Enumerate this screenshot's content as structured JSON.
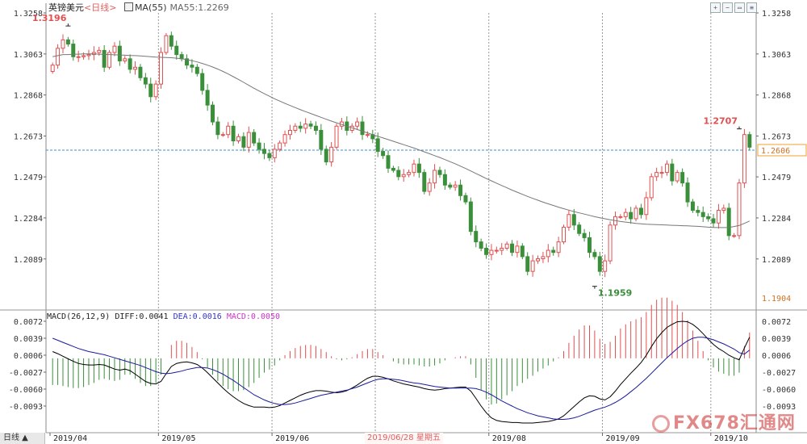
{
  "header": {
    "symbol": "英镑美元",
    "period": "<日线>",
    "ma_label": "MA(55)",
    "ma_value": "MA55:1.2269"
  },
  "macd_header": {
    "params": "MACD(26,12,9)",
    "diff": "DIFF:0.0041",
    "dea": "DEA:0.0016",
    "macd": "MACD:0.0050"
  },
  "bottom": {
    "tab_label": "日线",
    "cursor_date": "2019/06/28 星期五"
  },
  "watermark": {
    "text": "FX678汇通网"
  },
  "colors": {
    "up": "#e05050",
    "down": "#3a8f3a",
    "ma": "#777777",
    "diff": "#000000",
    "dea": "#1a1aa0",
    "grid": "#999999",
    "current_price": "#3a8fd6"
  },
  "chart_data": {
    "type": "candlestick",
    "price_axis": {
      "ticks": [
        "1.3258",
        "1.3063",
        "1.2868",
        "1.2673",
        "1.2479",
        "1.2284",
        "1.2089"
      ],
      "min": 1.1904,
      "min_label": "1.1904",
      "max": 1.3258
    },
    "current_price": 1.2606,
    "current_price_label": "1.2606",
    "macd_axis": {
      "ticks": [
        "0.0072",
        "0.0039",
        "0.0006",
        "-0.0027",
        "-0.0060",
        "-0.0093"
      ],
      "min": -0.0126,
      "max": 0.0072
    },
    "month_labels": [
      "2019/04",
      "2019/05",
      "2019/06",
      "2019/07",
      "2019/08",
      "2019/09",
      "2019/10"
    ],
    "month_start_index": [
      0,
      21,
      43,
      63,
      85,
      107,
      128
    ],
    "annotations": [
      {
        "label": "1.3196",
        "index": 3,
        "value": 1.3196,
        "kind": "high"
      },
      {
        "label": "1.1959",
        "index": 105,
        "value": 1.1959,
        "kind": "low"
      },
      {
        "label": "1.2707",
        "index": 133,
        "value": 1.2707,
        "kind": "high"
      }
    ],
    "close": [
      1.301,
      1.309,
      1.313,
      1.311,
      1.305,
      1.305,
      1.3055,
      1.306,
      1.307,
      1.308,
      1.3,
      1.307,
      1.31,
      1.303,
      1.304,
      1.299,
      1.3,
      1.295,
      1.292,
      1.286,
      1.292,
      1.307,
      1.315,
      1.31,
      1.306,
      1.304,
      1.301,
      1.3,
      1.297,
      1.289,
      1.282,
      1.274,
      1.268,
      1.268,
      1.272,
      1.265,
      1.267,
      1.262,
      1.269,
      1.264,
      1.261,
      1.259,
      1.257,
      1.261,
      1.264,
      1.268,
      1.27,
      1.272,
      1.271,
      1.273,
      1.272,
      1.27,
      1.261,
      1.255,
      1.262,
      1.272,
      1.274,
      1.27,
      1.272,
      1.274,
      1.268,
      1.268,
      1.266,
      1.26,
      1.258,
      1.252,
      1.251,
      1.248,
      1.249,
      1.25,
      1.254,
      1.25,
      1.241,
      1.245,
      1.251,
      1.249,
      1.244,
      1.243,
      1.244,
      1.239,
      1.236,
      1.222,
      1.217,
      1.214,
      1.211,
      1.213,
      1.213,
      1.214,
      1.216,
      1.212,
      1.215,
      1.21,
      1.203,
      1.208,
      1.209,
      1.21,
      1.213,
      1.212,
      1.217,
      1.224,
      1.23,
      1.225,
      1.221,
      1.219,
      1.212,
      1.21,
      1.203,
      1.208,
      1.225,
      1.229,
      1.229,
      1.231,
      1.228,
      1.233,
      1.23,
      1.238,
      1.248,
      1.25,
      1.25,
      1.254,
      1.246,
      1.25,
      1.245,
      1.236,
      1.232,
      1.231,
      1.229,
      1.228,
      1.226,
      1.232,
      1.233,
      1.22,
      1.22,
      1.245,
      1.268,
      1.262
    ],
    "ma55": [
      1.305,
      1.3055,
      1.306,
      1.306,
      1.3062,
      1.3062,
      1.3063,
      1.3063,
      1.3063,
      1.3062,
      1.3061,
      1.306,
      1.3059,
      1.3058,
      1.3057,
      1.3056,
      1.3055,
      1.3054,
      1.3052,
      1.305,
      1.3048,
      1.3047,
      1.3046,
      1.3045,
      1.3043,
      1.304,
      1.3036,
      1.3031,
      1.3025,
      1.3018,
      1.301,
      1.3001,
      1.2991,
      1.298,
      1.2968,
      1.2955,
      1.2942,
      1.2928,
      1.2914,
      1.29,
      1.2887,
      1.2874,
      1.2862,
      1.285,
      1.2839,
      1.2828,
      1.2818,
      1.2808,
      1.2798,
      1.2789,
      1.278,
      1.2771,
      1.2762,
      1.2753,
      1.2744,
      1.2736,
      1.2728,
      1.272,
      1.2712,
      1.2704,
      1.2696,
      1.2688,
      1.268,
      1.2672,
      1.2664,
      1.2656,
      1.2648,
      1.264,
      1.2632,
      1.2624,
      1.2616,
      1.2607,
      1.2598,
      1.2589,
      1.258,
      1.2571,
      1.2561,
      1.2551,
      1.2541,
      1.253,
      1.2519,
      1.2507,
      1.2495,
      1.2483,
      1.2471,
      1.246,
      1.2449,
      1.2438,
      1.2427,
      1.2416,
      1.2406,
      1.2396,
      1.2386,
      1.2377,
      1.2368,
      1.2359,
      1.2351,
      1.2343,
      1.2335,
      1.2328,
      1.2321,
      1.2314,
      1.2308,
      1.2302,
      1.2296,
      1.229,
      1.2285,
      1.228,
      1.2275,
      1.2271,
      1.2267,
      1.2264,
      1.2261,
      1.2258,
      1.2256,
      1.2254,
      1.2253,
      1.2252,
      1.2251,
      1.225,
      1.2249,
      1.2248,
      1.2247,
      1.2246,
      1.2245,
      1.2244,
      1.2242,
      1.224,
      1.2239,
      1.2238,
      1.2238,
      1.2239,
      1.2243,
      1.2248,
      1.2258,
      1.2269
    ],
    "diff": [
      0.0013,
      0.0009,
      0.0004,
      -0.0001,
      -0.0006,
      -0.001,
      -0.0012,
      -0.0013,
      -0.0013,
      -0.0012,
      -0.0013,
      -0.0017,
      -0.0021,
      -0.0023,
      -0.0021,
      -0.0024,
      -0.0031,
      -0.0038,
      -0.0045,
      -0.0049,
      -0.005,
      -0.0045,
      -0.003,
      -0.0016,
      -0.001,
      -0.0008,
      -0.0007,
      -0.0009,
      -0.0012,
      -0.0019,
      -0.0028,
      -0.0038,
      -0.0048,
      -0.0058,
      -0.0067,
      -0.0075,
      -0.0082,
      -0.0088,
      -0.0092,
      -0.0095,
      -0.0095,
      -0.0095,
      -0.0096,
      -0.0095,
      -0.0092,
      -0.0087,
      -0.0082,
      -0.0077,
      -0.0072,
      -0.0068,
      -0.0065,
      -0.0063,
      -0.0063,
      -0.0064,
      -0.0066,
      -0.0067,
      -0.0066,
      -0.0063,
      -0.0058,
      -0.0052,
      -0.0045,
      -0.0039,
      -0.0035,
      -0.0035,
      -0.0037,
      -0.004,
      -0.0044,
      -0.0047,
      -0.005,
      -0.0052,
      -0.0054,
      -0.0056,
      -0.0059,
      -0.0061,
      -0.0062,
      -0.0061,
      -0.0059,
      -0.0058,
      -0.0057,
      -0.0056,
      -0.0056,
      -0.0064,
      -0.0078,
      -0.0093,
      -0.0106,
      -0.0116,
      -0.0121,
      -0.0123,
      -0.0124,
      -0.0125,
      -0.0125,
      -0.0126,
      -0.0126,
      -0.0126,
      -0.0125,
      -0.0124,
      -0.0123,
      -0.0121,
      -0.0118,
      -0.0112,
      -0.0103,
      -0.0094,
      -0.0085,
      -0.0077,
      -0.0073,
      -0.0074,
      -0.0079,
      -0.0081,
      -0.0075,
      -0.0064,
      -0.0051,
      -0.004,
      -0.0029,
      -0.0019,
      -0.0008,
      0.0006,
      0.0023,
      0.0038,
      0.005,
      0.006,
      0.0066,
      0.0071,
      0.0072,
      0.0071,
      0.0066,
      0.0058,
      0.0048,
      0.0037,
      0.0027,
      0.0019,
      0.0013,
      0.0006,
      0.0001,
      -0.0003,
      0.002,
      0.0041
    ],
    "dea": [
      0.0039,
      0.0035,
      0.0031,
      0.0027,
      0.0023,
      0.0019,
      0.0016,
      0.0013,
      0.0011,
      0.0009,
      0.0007,
      0.0004,
      0.0001,
      -0.0002,
      -0.0005,
      -0.0008,
      -0.0011,
      -0.0014,
      -0.0018,
      -0.0022,
      -0.0026,
      -0.0029,
      -0.003,
      -0.0029,
      -0.0027,
      -0.0025,
      -0.0022,
      -0.002,
      -0.0018,
      -0.0018,
      -0.0019,
      -0.0022,
      -0.0026,
      -0.0031,
      -0.0037,
      -0.0043,
      -0.005,
      -0.0057,
      -0.0064,
      -0.0071,
      -0.0076,
      -0.0081,
      -0.0085,
      -0.0088,
      -0.009,
      -0.009,
      -0.0089,
      -0.0087,
      -0.0084,
      -0.0081,
      -0.0078,
      -0.0075,
      -0.0072,
      -0.007,
      -0.0068,
      -0.0066,
      -0.0064,
      -0.0062,
      -0.0059,
      -0.0056,
      -0.0052,
      -0.0048,
      -0.0044,
      -0.0041,
      -0.004,
      -0.004,
      -0.0041,
      -0.0042,
      -0.0044,
      -0.0046,
      -0.0048,
      -0.0049,
      -0.0051,
      -0.0053,
      -0.0055,
      -0.0056,
      -0.0057,
      -0.0058,
      -0.0058,
      -0.0058,
      -0.0058,
      -0.0058,
      -0.0059,
      -0.0062,
      -0.0066,
      -0.0071,
      -0.0077,
      -0.0083,
      -0.0088,
      -0.0093,
      -0.0098,
      -0.0102,
      -0.0106,
      -0.0109,
      -0.0112,
      -0.0114,
      -0.0116,
      -0.0118,
      -0.0119,
      -0.0119,
      -0.0118,
      -0.0116,
      -0.0113,
      -0.0109,
      -0.0105,
      -0.0101,
      -0.0098,
      -0.0095,
      -0.0091,
      -0.0086,
      -0.008,
      -0.0073,
      -0.0065,
      -0.0057,
      -0.0048,
      -0.0039,
      -0.0029,
      -0.0019,
      -0.0009,
      0.0001,
      0.001,
      0.0019,
      0.0027,
      0.0034,
      0.0039,
      0.0041,
      0.0041,
      0.0039,
      0.0036,
      0.0032,
      0.0028,
      0.0023,
      0.0018,
      0.0011,
      0.0008,
      0.0016
    ]
  }
}
